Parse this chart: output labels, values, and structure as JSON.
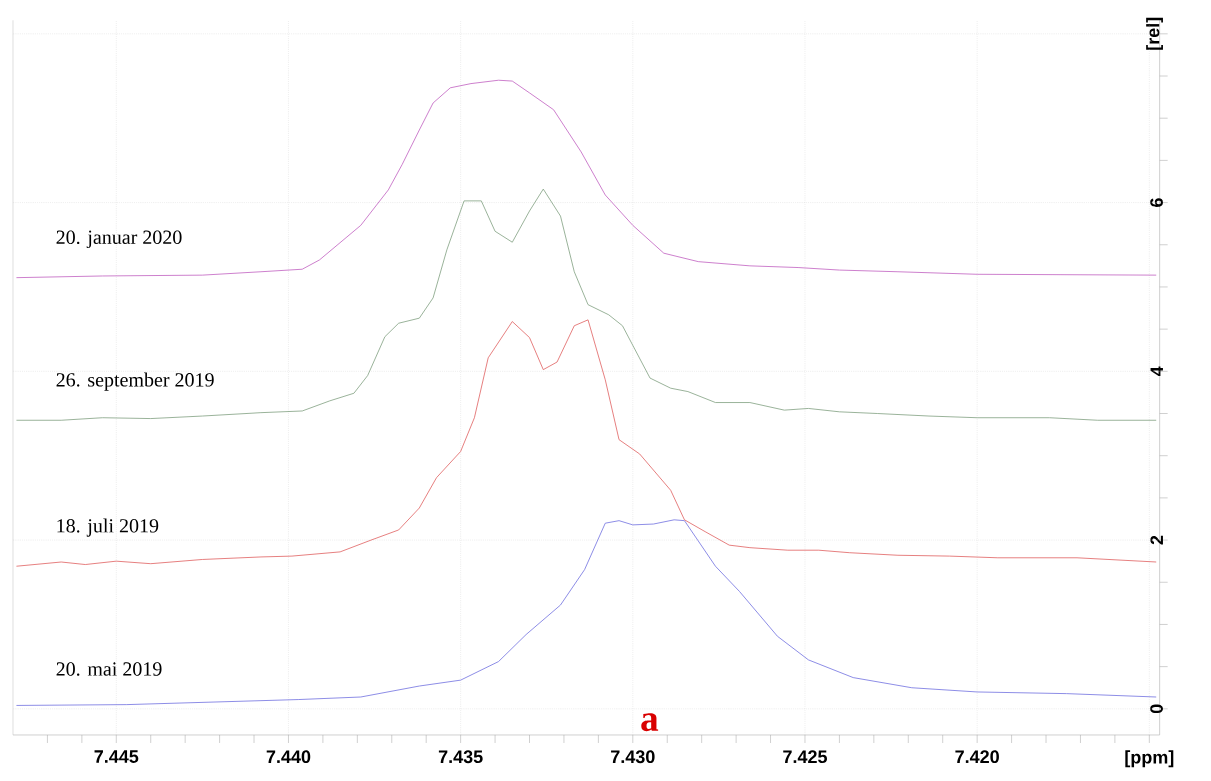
{
  "chart_data": {
    "type": "line",
    "xlim": [
      7.448,
      7.4147
    ],
    "ylim": [
      -0.31,
      8.16
    ],
    "grid": true,
    "xticks": [
      {
        "value": 7.447,
        "label": null
      },
      {
        "value": 7.446,
        "label": null
      },
      {
        "value": 7.445,
        "label": "7.445"
      },
      {
        "value": 7.444,
        "label": null
      },
      {
        "value": 7.443,
        "label": null
      },
      {
        "value": 7.442,
        "label": null
      },
      {
        "value": 7.441,
        "label": null
      },
      {
        "value": 7.44,
        "label": "7.440"
      },
      {
        "value": 7.439,
        "label": null
      },
      {
        "value": 7.438,
        "label": null
      },
      {
        "value": 7.437,
        "label": null
      },
      {
        "value": 7.436,
        "label": null
      },
      {
        "value": 7.435,
        "label": "7.435"
      },
      {
        "value": 7.434,
        "label": null
      },
      {
        "value": 7.433,
        "label": null
      },
      {
        "value": 7.432,
        "label": null
      },
      {
        "value": 7.431,
        "label": null
      },
      {
        "value": 7.43,
        "label": "7.430"
      },
      {
        "value": 7.429,
        "label": null
      },
      {
        "value": 7.428,
        "label": null
      },
      {
        "value": 7.427,
        "label": null
      },
      {
        "value": 7.426,
        "label": null
      },
      {
        "value": 7.425,
        "label": "7.425"
      },
      {
        "value": 7.424,
        "label": null
      },
      {
        "value": 7.423,
        "label": null
      },
      {
        "value": 7.422,
        "label": null
      },
      {
        "value": 7.421,
        "label": null
      },
      {
        "value": 7.42,
        "label": "7.420"
      },
      {
        "value": 7.419,
        "label": null
      },
      {
        "value": 7.418,
        "label": null
      },
      {
        "value": 7.417,
        "label": null
      },
      {
        "value": 7.416,
        "label": null
      },
      {
        "value": 7.415,
        "label": "[ppm]"
      }
    ],
    "yticks": [
      0,
      {
        "value": 0.5,
        "label": null
      },
      {
        "value": 1,
        "label": null
      },
      {
        "value": 1.5,
        "label": null
      },
      2,
      {
        "value": 2.5,
        "label": null
      },
      {
        "value": 3,
        "label": null
      },
      {
        "value": 3.5,
        "label": null
      },
      4,
      {
        "value": 4.5,
        "label": null
      },
      {
        "value": 5,
        "label": null
      },
      {
        "value": 5.5,
        "label": null
      },
      6,
      {
        "value": 6.5,
        "label": null
      },
      {
        "value": 7,
        "label": null
      },
      {
        "value": 7.5,
        "label": null
      },
      {
        "value": 8,
        "label": "[rel]"
      }
    ],
    "annotations": [
      "a"
    ],
    "series": [
      {
        "name": "20. mai 2019",
        "color": "#7070e0",
        "x": [
          7.4479,
          7.4447,
          7.4397,
          7.4379,
          7.4362,
          7.435,
          7.4339,
          7.4331,
          7.4321,
          7.4314,
          7.4308,
          7.4304,
          7.43,
          7.4294,
          7.4288,
          7.4285,
          7.4281,
          7.4276,
          7.4269,
          7.4258,
          7.4249,
          7.4236,
          7.4219,
          7.42,
          7.4174,
          7.4148
        ],
        "values": [
          0.04,
          0.05,
          0.11,
          0.14,
          0.27,
          0.34,
          0.56,
          0.88,
          1.23,
          1.65,
          2.2,
          2.23,
          2.18,
          2.19,
          2.24,
          2.23,
          1.99,
          1.69,
          1.39,
          0.86,
          0.58,
          0.37,
          0.25,
          0.2,
          0.18,
          0.14
        ]
      },
      {
        "name": "18. juli 2019",
        "color": "#e06060",
        "x": [
          7.4479,
          7.4466,
          7.4459,
          7.445,
          7.444,
          7.4425,
          7.4408,
          7.4399,
          7.4385,
          7.4376,
          7.4368,
          7.4362,
          7.4357,
          7.435,
          7.4346,
          7.4342,
          7.4335,
          7.433,
          7.4326,
          7.4322,
          7.4317,
          7.4313,
          7.4308,
          7.4304,
          7.4298,
          7.4289,
          7.4285,
          7.4279,
          7.4272,
          7.4266,
          7.4255,
          7.4246,
          7.4237,
          7.4223,
          7.4208,
          7.4194,
          7.4171,
          7.4148
        ],
        "values": [
          1.69,
          1.74,
          1.71,
          1.75,
          1.72,
          1.77,
          1.8,
          1.81,
          1.86,
          2.0,
          2.12,
          2.38,
          2.74,
          3.05,
          3.45,
          4.16,
          4.59,
          4.4,
          4.02,
          4.11,
          4.54,
          4.61,
          3.9,
          3.19,
          3.02,
          2.59,
          2.24,
          2.1,
          1.94,
          1.91,
          1.88,
          1.88,
          1.85,
          1.82,
          1.81,
          1.79,
          1.79,
          1.74
        ]
      },
      {
        "name": "26. september 2019",
        "color": "#80a080",
        "x": [
          7.4479,
          7.4466,
          7.4454,
          7.444,
          7.4425,
          7.4408,
          7.4396,
          7.4388,
          7.4381,
          7.4377,
          7.4372,
          7.4368,
          7.4362,
          7.4358,
          7.4354,
          7.4349,
          7.4344,
          7.434,
          7.4335,
          7.433,
          7.4326,
          7.4321,
          7.4317,
          7.4313,
          7.4307,
          7.4303,
          7.4295,
          7.4289,
          7.4284,
          7.4276,
          7.4266,
          7.4256,
          7.4249,
          7.424,
          7.4229,
          7.4214,
          7.42,
          7.4179,
          7.4165,
          7.4148
        ],
        "values": [
          3.42,
          3.42,
          3.45,
          3.44,
          3.47,
          3.51,
          3.53,
          3.65,
          3.74,
          3.95,
          4.41,
          4.57,
          4.63,
          4.87,
          5.44,
          6.02,
          6.02,
          5.66,
          5.53,
          5.9,
          6.16,
          5.84,
          5.18,
          4.79,
          4.67,
          4.54,
          3.92,
          3.8,
          3.76,
          3.63,
          3.63,
          3.54,
          3.56,
          3.52,
          3.5,
          3.47,
          3.45,
          3.45,
          3.42,
          3.42
        ]
      },
      {
        "name": "20. januar 2020",
        "color": "#c060c0",
        "x": [
          7.4479,
          7.4454,
          7.4425,
          7.4408,
          7.4396,
          7.4391,
          7.4379,
          7.4371,
          7.4367,
          7.4362,
          7.4358,
          7.4353,
          7.4347,
          7.4339,
          7.4335,
          7.433,
          7.4323,
          7.4315,
          7.4308,
          7.43,
          7.4291,
          7.4281,
          7.4266,
          7.4252,
          7.424,
          7.4223,
          7.42,
          7.4148
        ],
        "values": [
          5.11,
          5.13,
          5.14,
          5.18,
          5.21,
          5.32,
          5.73,
          6.15,
          6.45,
          6.86,
          7.18,
          7.36,
          7.41,
          7.45,
          7.44,
          7.3,
          7.1,
          6.6,
          6.09,
          5.73,
          5.4,
          5.3,
          5.25,
          5.23,
          5.2,
          5.18,
          5.15,
          5.14
        ]
      }
    ]
  }
}
